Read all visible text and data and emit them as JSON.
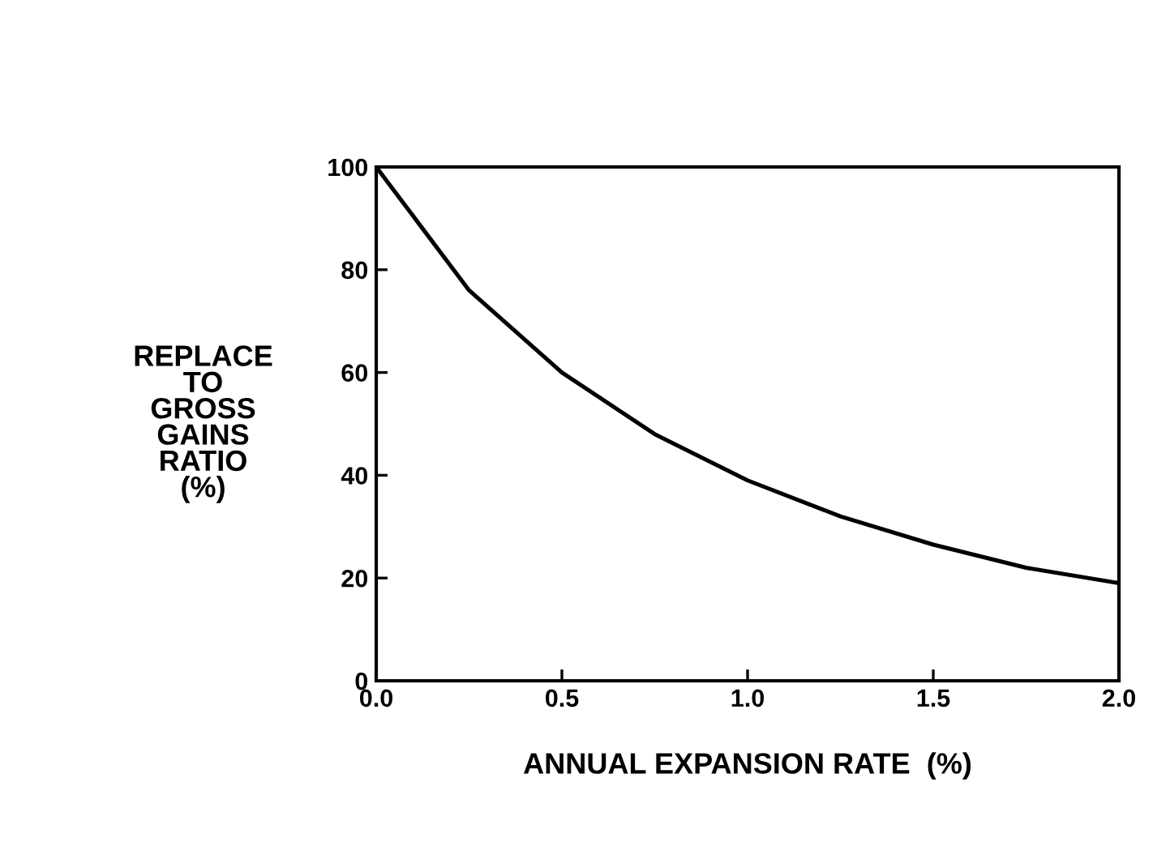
{
  "chart_data": {
    "type": "line",
    "xlabel": "ANNUAL EXPANSION RATE  (%)",
    "ylabel": "REPLACE\nTO\nGROSS\nGAINS\nRATIO\n(%)",
    "x": [
      0.0,
      0.25,
      0.5,
      0.75,
      1.0,
      1.25,
      1.5,
      1.75,
      2.0
    ],
    "series": [
      {
        "color": "#000000",
        "values": [
          100,
          76,
          60,
          48,
          39,
          32,
          26.5,
          22,
          19
        ]
      }
    ],
    "xlim": [
      0.0,
      2.0
    ],
    "ylim": [
      0,
      100
    ],
    "xticks": [
      {
        "value": 0,
        "label": "0.0"
      },
      0.5,
      {
        "value": 1,
        "label": "1.0"
      },
      1.5,
      {
        "value": 2,
        "label": "2.0"
      }
    ],
    "yticks": [
      0,
      20,
      40,
      60,
      80,
      100
    ],
    "grid": false,
    "legend": false,
    "marker": "none",
    "line_style": "solid"
  }
}
